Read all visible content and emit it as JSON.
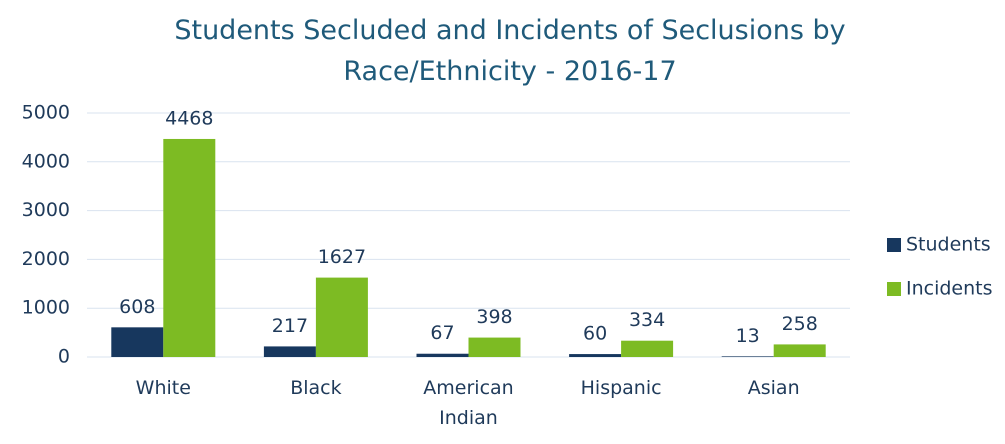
{
  "chart_data": {
    "type": "bar",
    "title": "Students Secluded and Incidents of Seclusions by Race/Ethnicity - 2016-17",
    "categories": [
      "White",
      "Black",
      "American Indian",
      "Hispanic",
      "Asian"
    ],
    "series": [
      {
        "name": "Students",
        "color": "#17375e",
        "values": [
          608,
          217,
          67,
          60,
          13
        ]
      },
      {
        "name": "Incidents",
        "color": "#7dbb23",
        "values": [
          4468,
          1627,
          398,
          334,
          258
        ]
      }
    ],
    "ylim": [
      0,
      5000
    ],
    "yticks": [
      0,
      1000,
      2000,
      3000,
      4000,
      5000
    ],
    "grid": true,
    "legend": "right"
  }
}
